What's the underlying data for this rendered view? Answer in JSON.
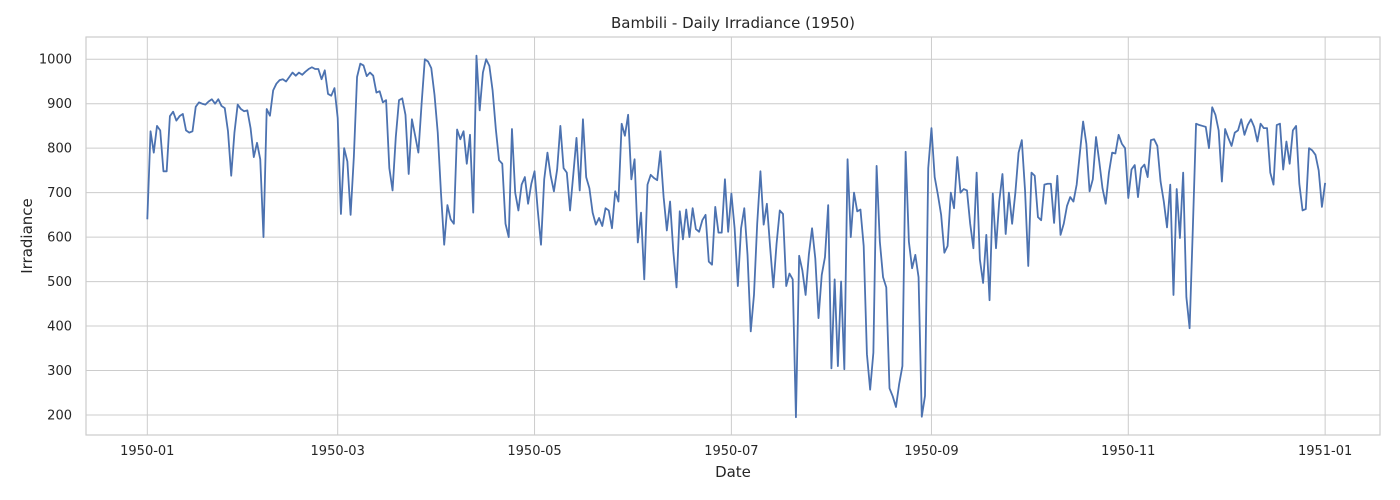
{
  "chart_data": {
    "type": "line",
    "title": "Bambili - Daily Irradiance (1950)",
    "xlabel": "Date",
    "ylabel": "Irradiance",
    "x_start": "1950-01-01",
    "x_end": "1950-12-31",
    "xlim": [
      "1949-12-13",
      "1951-01-18"
    ],
    "ylim": [
      155,
      1050
    ],
    "x_ticks": [
      "1950-01",
      "1950-03",
      "1950-05",
      "1950-07",
      "1950-09",
      "1950-11",
      "1951-01"
    ],
    "y_ticks": [
      200,
      300,
      400,
      500,
      600,
      700,
      800,
      900,
      1000
    ],
    "grid": true,
    "line_color": "#4c72b0",
    "series": [
      {
        "values": [
          640,
          838,
          790,
          850,
          840,
          748,
          748,
          872,
          882,
          862,
          872,
          877,
          840,
          835,
          838,
          893,
          903,
          900,
          898,
          905,
          910,
          900,
          910,
          895,
          890,
          838,
          738,
          835,
          898,
          888,
          883,
          885,
          845,
          780,
          812,
          775,
          600,
          888,
          873,
          930,
          945,
          953,
          955,
          950,
          960,
          970,
          963,
          970,
          965,
          972,
          978,
          982,
          978,
          978,
          955,
          975,
          922,
          918,
          935,
          868,
          652,
          800,
          770,
          650,
          780,
          960,
          990,
          986,
          962,
          970,
          963,
          925,
          928,
          903,
          908,
          755,
          705,
          825,
          908,
          912,
          875,
          742,
          865,
          828,
          790,
          900,
          1000,
          995,
          980,
          920,
          835,
          700,
          583,
          672,
          640,
          630,
          842,
          820,
          838,
          765,
          830,
          655,
          1008,
          885,
          970,
          1000,
          985,
          930,
          843,
          773,
          765,
          630,
          600,
          843,
          700,
          660,
          718,
          735,
          675,
          720,
          748,
          660,
          583,
          730,
          790,
          738,
          703,
          752,
          850,
          755,
          745,
          660,
          740,
          823,
          705,
          865,
          735,
          710,
          655,
          628,
          643,
          625,
          665,
          660,
          620,
          703,
          680,
          855,
          828,
          875,
          730,
          775,
          588,
          655,
          505,
          718,
          740,
          733,
          728,
          793,
          690,
          615,
          680,
          568,
          487,
          658,
          595,
          662,
          600,
          665,
          618,
          612,
          638,
          650,
          545,
          538,
          668,
          610,
          610,
          730,
          612,
          698,
          620,
          490,
          620,
          665,
          560,
          388,
          470,
          630,
          748,
          628,
          675,
          578,
          487,
          585,
          660,
          652,
          490,
          518,
          505,
          195,
          558,
          525,
          470,
          560,
          620,
          552,
          418,
          515,
          555,
          672,
          305,
          505,
          310,
          500,
          303,
          775,
          600,
          700,
          658,
          662,
          580,
          337,
          257,
          340,
          760,
          590,
          510,
          487,
          260,
          242,
          218,
          270,
          310,
          792,
          590,
          530,
          560,
          510,
          196,
          243,
          755,
          845,
          735,
          695,
          650,
          565,
          580,
          700,
          665,
          780,
          700,
          708,
          705,
          630,
          575,
          745,
          550,
          497,
          605,
          458,
          698,
          575,
          680,
          742,
          607,
          700,
          630,
          700,
          790,
          818,
          705,
          535,
          745,
          738,
          645,
          638,
          718,
          720,
          720,
          632,
          738,
          605,
          630,
          670,
          690,
          680,
          718,
          790,
          860,
          810,
          703,
          730,
          825,
          770,
          710,
          675,
          745,
          790,
          788,
          830,
          810,
          800,
          688,
          752,
          762,
          690,
          755,
          763,
          735,
          818,
          820,
          805,
          725,
          680,
          622,
          718,
          470,
          708,
          598,
          745,
          465,
          395,
          620,
          855,
          852,
          850,
          848,
          800,
          892,
          875,
          840,
          725,
          843,
          823,
          805,
          835,
          840,
          865,
          830,
          852,
          865,
          848,
          815,
          855,
          845,
          845,
          745,
          718,
          852,
          855,
          752,
          815,
          765,
          840,
          850,
          720,
          660,
          663,
          800,
          795,
          785,
          750,
          668,
          722
        ]
      }
    ]
  }
}
